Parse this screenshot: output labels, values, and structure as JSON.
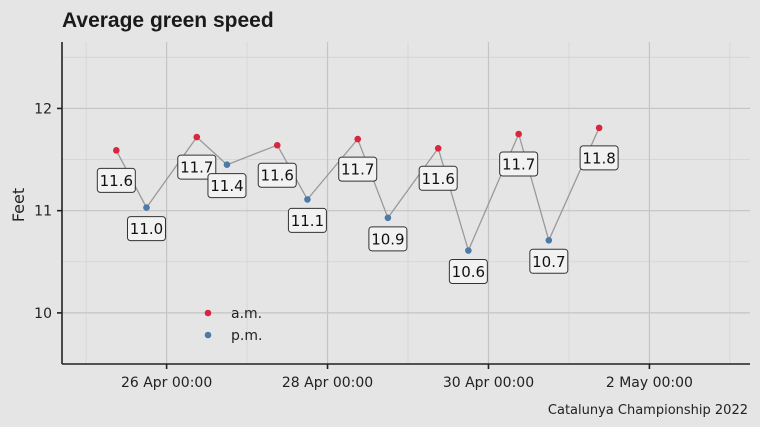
{
  "chart_data": {
    "type": "line",
    "title": "Average green speed",
    "ylabel": "Feet",
    "xlabel": "",
    "caption": "Catalunya Championship 2022",
    "ylim": [
      9.5,
      12.65
    ],
    "xlim": [
      "2022-04-24T16:48",
      "2022-05-03T06:00"
    ],
    "yticks": [
      10,
      11,
      12
    ],
    "xticks": [
      {
        "date": "2022-04-26T00:00",
        "label": "26 Apr 00:00"
      },
      {
        "date": "2022-04-28T00:00",
        "label": "28 Apr 00:00"
      },
      {
        "date": "2022-04-30T00:00",
        "label": "30 Apr 00:00"
      },
      {
        "date": "2022-05-02T00:00",
        "label": "2 May 00:00"
      }
    ],
    "grid": true,
    "legend_position": "inside-bottom-left",
    "series": [
      {
        "name": "a.m.",
        "color": "#d7263d",
        "points": [
          {
            "x": "2022-04-25T09:00",
            "y": 11.59,
            "label": "11.6"
          },
          {
            "x": "2022-04-26T09:00",
            "y": 11.72,
            "label": "11.7"
          },
          {
            "x": "2022-04-27T09:00",
            "y": 11.64,
            "label": "11.6"
          },
          {
            "x": "2022-04-28T09:00",
            "y": 11.7,
            "label": "11.7"
          },
          {
            "x": "2022-04-29T09:00",
            "y": 11.61,
            "label": "11.6"
          },
          {
            "x": "2022-04-30T09:00",
            "y": 11.75,
            "label": "11.7"
          },
          {
            "x": "2022-05-01T09:00",
            "y": 11.81,
            "label": "11.8"
          }
        ]
      },
      {
        "name": "p.m.",
        "color": "#4a7ba8",
        "points": [
          {
            "x": "2022-04-25T18:00",
            "y": 11.03,
            "label": "11.0"
          },
          {
            "x": "2022-04-26T18:00",
            "y": 11.45,
            "label": "11.4"
          },
          {
            "x": "2022-04-27T18:00",
            "y": 11.11,
            "label": "11.1"
          },
          {
            "x": "2022-04-28T18:00",
            "y": 10.93,
            "label": "10.9"
          },
          {
            "x": "2022-04-29T18:00",
            "y": 10.61,
            "label": "10.6"
          },
          {
            "x": "2022-04-30T18:00",
            "y": 10.71,
            "label": "10.7"
          }
        ]
      }
    ]
  }
}
